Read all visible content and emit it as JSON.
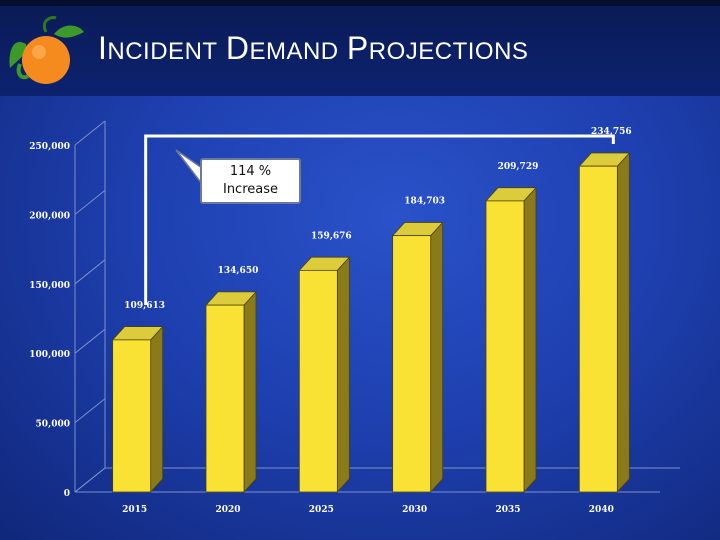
{
  "title": "Incident Demand Projections",
  "callout": {
    "percent": "114 %",
    "word": "Increase"
  },
  "colors": {
    "bar_front": "#f9e234",
    "bar_side": "#8a7a1a",
    "bar_top": "#dccb3a",
    "label": "#ffffff"
  },
  "chart_data": {
    "type": "bar",
    "title": "Incident Demand Projections",
    "categories": [
      "2015",
      "2020",
      "2025",
      "2030",
      "2035",
      "2040"
    ],
    "values": [
      109613,
      134650,
      159676,
      184703,
      209729,
      234756
    ],
    "value_labels": [
      "109,613",
      "134,650",
      "159,676",
      "184,703",
      "209,729",
      "234,756"
    ],
    "yticks": [
      0,
      50000,
      100000,
      150000,
      200000,
      250000
    ],
    "ytick_labels": [
      "0",
      "50,000",
      "100,000",
      "150,000",
      "200,000",
      "250,000"
    ],
    "ylim": [
      0,
      250000
    ],
    "xlabel": "",
    "ylabel": "",
    "grid": false,
    "annotation": "114 % Increase"
  }
}
